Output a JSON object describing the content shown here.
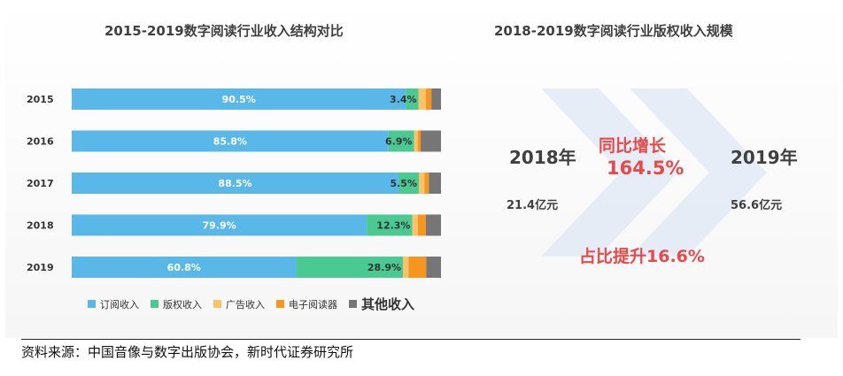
{
  "chart_data": [
    {
      "type": "bar",
      "orientation": "horizontal",
      "stacked": true,
      "title": "2015-2019数字阅读行业收入结构对比",
      "categories": [
        "2015",
        "2016",
        "2017",
        "2018",
        "2019"
      ],
      "series": [
        {
          "name": "订阅收入",
          "color": "#59b8e8",
          "values": [
            90.5,
            85.8,
            88.5,
            79.9,
            60.8
          ]
        },
        {
          "name": "版权收入",
          "color": "#4bc992",
          "values": [
            3.4,
            6.9,
            5.5,
            12.3,
            28.9
          ]
        },
        {
          "name": "广告收入",
          "color": "#f8c36a",
          "values": [
            2.0,
            1.0,
            1.5,
            1.5,
            1.5
          ]
        },
        {
          "name": "电子阅读器",
          "color": "#f7961e",
          "values": [
            1.5,
            0.8,
            1.2,
            2.2,
            4.8
          ]
        },
        {
          "name": "其他收入",
          "color": "#767676",
          "values": [
            2.6,
            5.5,
            3.3,
            4.1,
            4.0
          ]
        }
      ],
      "labeled_series": [
        0,
        1
      ],
      "label_suffix": "%",
      "xlim": [
        0,
        100
      ],
      "grid": false,
      "legend": "bottom"
    },
    {
      "type": "table",
      "title": "2018-2019数字阅读行业版权收入规模",
      "year_from": "2018年",
      "year_to": "2019年",
      "value_from": "21.4亿元",
      "value_to": "56.6亿元",
      "growth_label": "同比增长",
      "growth_value": "164.5%",
      "share_text": "占比提升16.6%"
    }
  ],
  "source": "资料来源：中国音像与数字出版协会，新时代证券研究所",
  "colors": {
    "accent_red": "#e84a4a",
    "arrow_light": "#dde7f5"
  }
}
